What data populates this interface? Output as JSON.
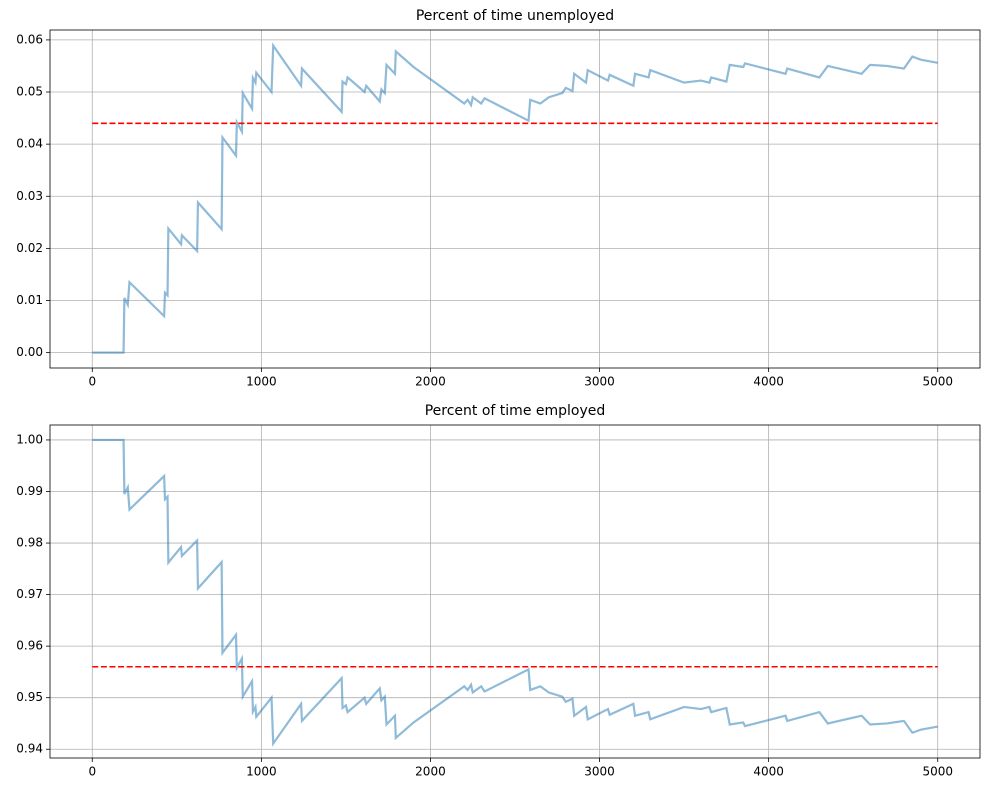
{
  "chart_data": [
    {
      "type": "line",
      "title": "Percent of time unemployed",
      "xlim": [
        -250,
        5250
      ],
      "ylim": [
        -0.00295,
        0.0619
      ],
      "xticks": [
        0,
        1000,
        2000,
        3000,
        4000,
        5000
      ],
      "yticks": [
        {
          "value": 0,
          "label": "0.00"
        },
        0.01,
        0.02,
        0.03,
        0.04,
        0.05,
        0.06
      ],
      "grid": true,
      "series": [
        {
          "color": "#1f77b4",
          "alpha": 0.5,
          "linestyle": "solid",
          "x": [
            0,
            185,
            190,
            210,
            220,
            425,
            430,
            445,
            450,
            525,
            530,
            620,
            625,
            765,
            770,
            850,
            855,
            885,
            890,
            945,
            950,
            965,
            970,
            1060,
            1070,
            1235,
            1240,
            1475,
            1480,
            1500,
            1510,
            1610,
            1620,
            1700,
            1710,
            1730,
            1740,
            1790,
            1795,
            1900,
            2200,
            2220,
            2240,
            2250,
            2300,
            2320,
            2580,
            2590,
            2650,
            2700,
            2780,
            2800,
            2840,
            2850,
            2920,
            2930,
            3050,
            3060,
            3200,
            3210,
            3290,
            3300,
            3500,
            3600,
            3650,
            3660,
            3750,
            3770,
            3850,
            3860,
            4100,
            4110,
            4300,
            4350,
            4550,
            4600,
            4700,
            4800,
            4850,
            4900,
            5000
          ],
          "values": [
            0,
            0,
            0.0105,
            0.0092,
            0.0135,
            0.007,
            0.0115,
            0.011,
            0.0238,
            0.0208,
            0.0225,
            0.0195,
            0.0288,
            0.0237,
            0.0413,
            0.0378,
            0.0442,
            0.0424,
            0.0498,
            0.0468,
            0.0527,
            0.0518,
            0.0537,
            0.05,
            0.0589,
            0.0512,
            0.0545,
            0.0462,
            0.052,
            0.0515,
            0.0528,
            0.05,
            0.0512,
            0.0482,
            0.0505,
            0.0498,
            0.0552,
            0.0535,
            0.0578,
            0.0548,
            0.0478,
            0.0485,
            0.0475,
            0.049,
            0.0478,
            0.0488,
            0.0445,
            0.0485,
            0.0478,
            0.049,
            0.0498,
            0.0508,
            0.0502,
            0.0535,
            0.0518,
            0.0542,
            0.0522,
            0.0533,
            0.0512,
            0.0535,
            0.0528,
            0.0542,
            0.0518,
            0.0522,
            0.0518,
            0.0528,
            0.052,
            0.0552,
            0.0548,
            0.0555,
            0.0535,
            0.0545,
            0.0528,
            0.055,
            0.0535,
            0.0552,
            0.055,
            0.0545,
            0.0568,
            0.0562,
            0.0556
          ]
        },
        {
          "color": "red",
          "alpha": 1,
          "linestyle": "dashed",
          "x": [
            0,
            5000
          ],
          "values": [
            0.044,
            0.044
          ]
        }
      ]
    },
    {
      "type": "line",
      "title": "Percent of time employed",
      "xlim": [
        -250,
        5250
      ],
      "ylim": [
        0.9383,
        1.0029
      ],
      "xticks": [
        0,
        1000,
        2000,
        3000,
        4000,
        5000
      ],
      "yticks": [
        0.94,
        0.95,
        0.96,
        0.97,
        0.98,
        0.99,
        {
          "value": 1,
          "label": "1.00"
        }
      ],
      "grid": true,
      "series": [
        {
          "color": "#1f77b4",
          "alpha": 0.5,
          "linestyle": "solid",
          "x": [
            0,
            185,
            190,
            210,
            220,
            425,
            430,
            445,
            450,
            525,
            530,
            620,
            625,
            765,
            770,
            850,
            855,
            885,
            890,
            945,
            950,
            965,
            970,
            1060,
            1070,
            1235,
            1240,
            1475,
            1480,
            1500,
            1510,
            1610,
            1620,
            1700,
            1710,
            1730,
            1740,
            1790,
            1795,
            1900,
            2200,
            2220,
            2240,
            2250,
            2300,
            2320,
            2580,
            2590,
            2650,
            2700,
            2780,
            2800,
            2840,
            2850,
            2920,
            2930,
            3050,
            3060,
            3200,
            3210,
            3290,
            3300,
            3500,
            3600,
            3650,
            3660,
            3750,
            3770,
            3850,
            3860,
            4100,
            4110,
            4300,
            4350,
            4550,
            4600,
            4700,
            4800,
            4850,
            4900,
            5000
          ],
          "values": [
            1,
            1,
            0.9895,
            0.9908,
            0.9865,
            0.993,
            0.9885,
            0.989,
            0.9762,
            0.9792,
            0.9775,
            0.9805,
            0.9712,
            0.9763,
            0.9587,
            0.9622,
            0.9558,
            0.9576,
            0.9502,
            0.9532,
            0.9473,
            0.9482,
            0.9463,
            0.95,
            0.9411,
            0.9488,
            0.9455,
            0.9538,
            0.948,
            0.9485,
            0.9472,
            0.95,
            0.9488,
            0.9518,
            0.9495,
            0.9502,
            0.9448,
            0.9465,
            0.9422,
            0.9452,
            0.9522,
            0.9515,
            0.9525,
            0.951,
            0.9522,
            0.9512,
            0.9555,
            0.9515,
            0.9522,
            0.951,
            0.9502,
            0.9492,
            0.9498,
            0.9465,
            0.9482,
            0.9458,
            0.9478,
            0.9467,
            0.9488,
            0.9465,
            0.9472,
            0.9458,
            0.9482,
            0.9478,
            0.9482,
            0.9472,
            0.948,
            0.9448,
            0.9452,
            0.9445,
            0.9465,
            0.9455,
            0.9472,
            0.945,
            0.9465,
            0.9448,
            0.945,
            0.9455,
            0.9432,
            0.9438,
            0.9444
          ]
        },
        {
          "color": "red",
          "alpha": 1,
          "linestyle": "dashed",
          "x": [
            0,
            5000
          ],
          "values": [
            0.956,
            0.956
          ]
        }
      ]
    }
  ]
}
